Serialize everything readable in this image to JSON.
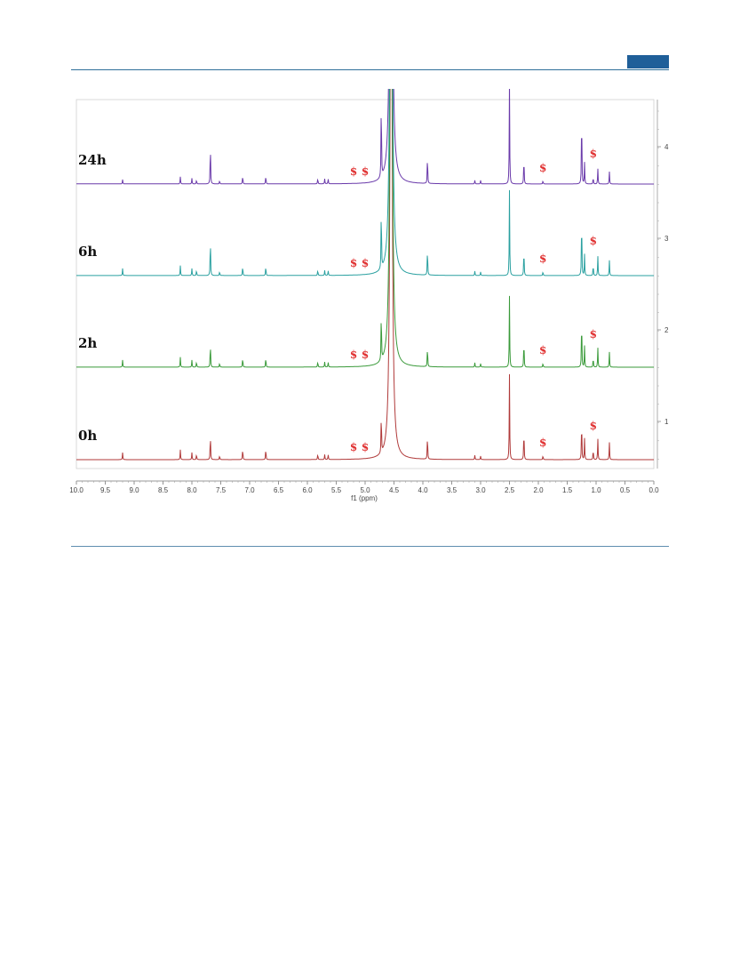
{
  "page": {
    "accent_color": "#1f5f99"
  },
  "chart_data": {
    "type": "line",
    "title": "",
    "xlabel": "f1 (ppm)",
    "ylabel": "",
    "xlim": [
      10.0,
      0.0
    ],
    "x_axis_reversed": true,
    "x_ticks": [
      "10.0",
      "9.5",
      "9.0",
      "8.5",
      "8.0",
      "7.5",
      "7.0",
      "6.5",
      "6.0",
      "5.5",
      "5.0",
      "4.5",
      "4.0",
      "3.5",
      "3.0",
      "2.5",
      "2.0",
      "1.5",
      "1.0",
      "0.5",
      "0.0"
    ],
    "right_ticks": [
      "1",
      "2",
      "3",
      "4"
    ],
    "grid": false,
    "legend": "none",
    "marker_symbol": "$",
    "marker_color": "#e03030",
    "series": [
      {
        "name": "0h",
        "color": "#b03a3a",
        "peaks": [
          [
            9.2,
            0.1
          ],
          [
            8.2,
            0.14
          ],
          [
            8.0,
            0.1
          ],
          [
            7.92,
            0.08
          ],
          [
            7.68,
            0.38
          ],
          [
            7.52,
            0.06
          ],
          [
            7.12,
            0.16
          ],
          [
            6.72,
            0.16
          ],
          [
            5.82,
            0.08
          ],
          [
            5.7,
            0.07
          ],
          [
            5.64,
            0.07
          ],
          [
            4.72,
            0.6
          ],
          [
            4.55,
            10.0
          ],
          [
            3.92,
            0.36
          ],
          [
            3.1,
            0.06
          ],
          [
            3.0,
            0.05
          ],
          [
            2.5,
            1.2
          ],
          [
            2.25,
            0.45
          ],
          [
            1.92,
            0.06
          ],
          [
            1.25,
            0.6
          ],
          [
            1.2,
            0.3
          ],
          [
            1.05,
            0.15
          ],
          [
            0.97,
            0.3
          ],
          [
            0.77,
            0.25
          ]
        ],
        "markers_ppm": [
          5.2,
          5.0,
          1.92,
          1.05
        ]
      },
      {
        "name": "2h",
        "color": "#3a9a3a",
        "peaks": [
          [
            9.2,
            0.1
          ],
          [
            8.2,
            0.14
          ],
          [
            8.0,
            0.1
          ],
          [
            7.92,
            0.08
          ],
          [
            7.68,
            0.36
          ],
          [
            7.52,
            0.06
          ],
          [
            7.12,
            0.14
          ],
          [
            6.72,
            0.14
          ],
          [
            5.82,
            0.08
          ],
          [
            5.7,
            0.07
          ],
          [
            5.64,
            0.07
          ],
          [
            4.72,
            0.75
          ],
          [
            4.55,
            10.0
          ],
          [
            3.92,
            0.3
          ],
          [
            3.1,
            0.06
          ],
          [
            3.0,
            0.05
          ],
          [
            2.5,
            1.0
          ],
          [
            2.25,
            0.4
          ],
          [
            1.92,
            0.06
          ],
          [
            1.25,
            0.75
          ],
          [
            1.2,
            0.3
          ],
          [
            1.05,
            0.14
          ],
          [
            0.97,
            0.28
          ],
          [
            0.77,
            0.22
          ]
        ],
        "markers_ppm": [
          5.2,
          5.0,
          1.92,
          1.05
        ]
      },
      {
        "name": "6h",
        "color": "#2aa0a0",
        "peaks": [
          [
            9.2,
            0.1
          ],
          [
            8.2,
            0.14
          ],
          [
            8.0,
            0.1
          ],
          [
            7.92,
            0.08
          ],
          [
            7.68,
            0.56
          ],
          [
            7.52,
            0.06
          ],
          [
            7.12,
            0.14
          ],
          [
            6.72,
            0.14
          ],
          [
            5.82,
            0.08
          ],
          [
            5.7,
            0.07
          ],
          [
            5.64,
            0.07
          ],
          [
            4.72,
            0.95
          ],
          [
            4.55,
            10.0
          ],
          [
            3.92,
            0.4
          ],
          [
            3.1,
            0.06
          ],
          [
            3.0,
            0.05
          ],
          [
            2.5,
            1.2
          ],
          [
            2.25,
            0.4
          ],
          [
            1.92,
            0.06
          ],
          [
            1.25,
            0.9
          ],
          [
            1.2,
            0.3
          ],
          [
            1.05,
            0.16
          ],
          [
            0.97,
            0.28
          ],
          [
            0.77,
            0.22
          ]
        ],
        "markers_ppm": [
          5.2,
          5.0,
          1.92,
          1.05
        ]
      },
      {
        "name": "24h",
        "color": "#6a3aaa",
        "peaks": [
          [
            9.2,
            0.06
          ],
          [
            8.2,
            0.1
          ],
          [
            8.0,
            0.08
          ],
          [
            7.92,
            0.06
          ],
          [
            7.68,
            0.6
          ],
          [
            7.52,
            0.05
          ],
          [
            7.12,
            0.12
          ],
          [
            6.72,
            0.12
          ],
          [
            5.82,
            0.08
          ],
          [
            5.7,
            0.07
          ],
          [
            5.64,
            0.07
          ],
          [
            4.72,
            1.2
          ],
          [
            4.55,
            10.0
          ],
          [
            3.92,
            0.42
          ],
          [
            3.1,
            0.05
          ],
          [
            3.0,
            0.05
          ],
          [
            2.5,
            1.45
          ],
          [
            2.25,
            0.4
          ],
          [
            1.92,
            0.05
          ],
          [
            1.25,
            1.1
          ],
          [
            1.2,
            0.3
          ],
          [
            1.05,
            0.1
          ],
          [
            0.97,
            0.22
          ],
          [
            0.77,
            0.18
          ]
        ],
        "markers_ppm": [
          5.2,
          5.0,
          1.92,
          1.05
        ]
      }
    ]
  }
}
